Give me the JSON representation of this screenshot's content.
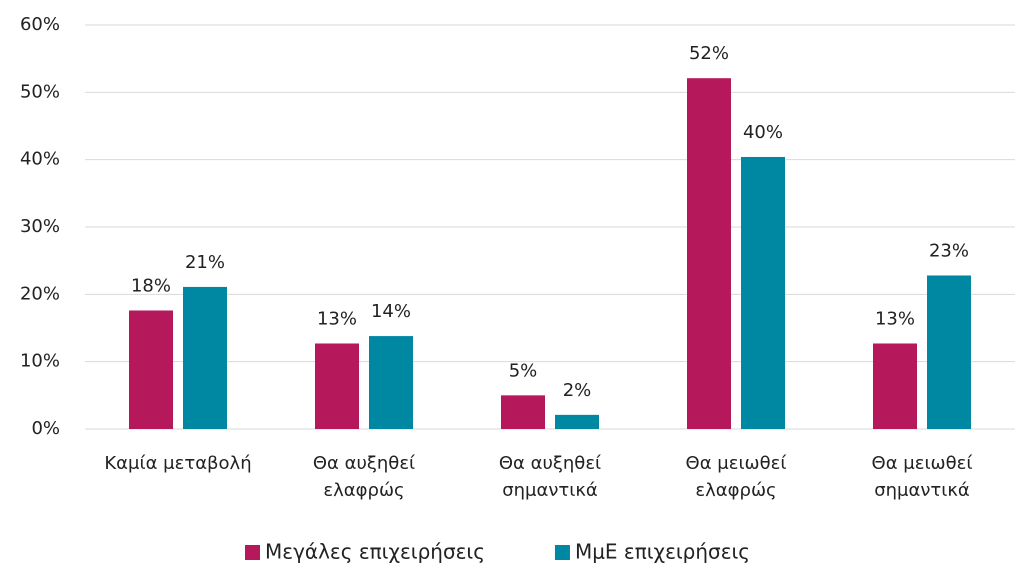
{
  "chart_data": {
    "type": "bar",
    "categories": [
      "Καμία μεταβολή",
      "Θα αυξηθεί\nελαφρώς",
      "Θα αυξηθεί\nσημαντικά",
      "Θα μειωθεί\nελαφρώς",
      "Θα μειωθεί\nσημαντικά"
    ],
    "series": [
      {
        "name": "Μεγάλες επιχειρήσεις",
        "color": "#b5195b",
        "values": [
          17.6,
          12.7,
          5.0,
          52.1,
          12.7
        ],
        "value_labels": [
          "18%",
          "13%",
          "5%",
          "52%",
          "13%"
        ]
      },
      {
        "name": "ΜμΕ επιχειρήσεις",
        "color": "#0088a3",
        "values": [
          21.1,
          13.8,
          2.1,
          40.4,
          22.8
        ],
        "value_labels": [
          "21%",
          "14%",
          "2%",
          "40%",
          "23%"
        ]
      }
    ],
    "ylim": [
      0,
      60
    ],
    "yticks": [
      {
        "value": 0,
        "label": "0%"
      },
      {
        "value": 10,
        "label": "10%"
      },
      {
        "value": 20,
        "label": "20%"
      },
      {
        "value": 30,
        "label": "30%"
      },
      {
        "value": 40,
        "label": "40%"
      },
      {
        "value": 50,
        "label": "50%"
      },
      {
        "value": 60,
        "label": "60%"
      }
    ],
    "grid": true,
    "legend": "bottom"
  }
}
